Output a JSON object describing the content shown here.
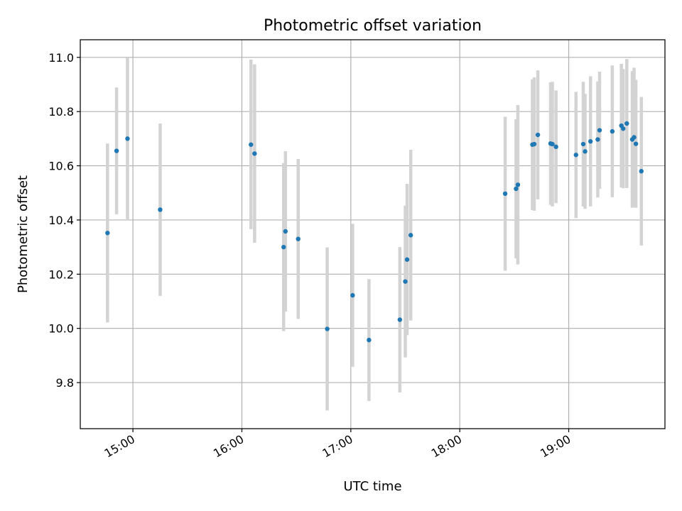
{
  "chart_data": {
    "type": "scatter",
    "title": "Photometric offset variation",
    "xlabel": "UTC time",
    "ylabel": "Photometric offset",
    "xlim": [
      "14:31",
      "19:53"
    ],
    "ylim": [
      9.63,
      11.065
    ],
    "x_ticks": [
      "15:00",
      "16:00",
      "17:00",
      "18:00",
      "19:00"
    ],
    "y_ticks": [
      "9.8",
      "10.0",
      "10.2",
      "10.4",
      "10.6",
      "10.8",
      "11.0"
    ],
    "grid": true,
    "colors": {
      "point": "#1f77b4",
      "errorbar": "#d3d3d3",
      "grid": "#b0b0b0"
    },
    "points": [
      {
        "t": "14:46",
        "y": 10.352,
        "lo": 10.022,
        "hi": 10.682
      },
      {
        "t": "14:51",
        "y": 10.655,
        "lo": 10.421,
        "hi": 10.889
      },
      {
        "t": "14:57",
        "y": 10.7,
        "lo": 10.4,
        "hi": 11.0
      },
      {
        "t": "15:15",
        "y": 10.438,
        "lo": 10.12,
        "hi": 10.756
      },
      {
        "t": "16:05",
        "y": 10.678,
        "lo": 10.366,
        "hi": 10.992
      },
      {
        "t": "16:07",
        "y": 10.645,
        "lo": 10.316,
        "hi": 10.974
      },
      {
        "t": "16:23",
        "y": 10.3,
        "lo": 9.99,
        "hi": 10.61
      },
      {
        "t": "16:24",
        "y": 10.358,
        "lo": 10.062,
        "hi": 10.654
      },
      {
        "t": "16:31",
        "y": 10.33,
        "lo": 10.035,
        "hi": 10.625
      },
      {
        "t": "16:47",
        "y": 9.998,
        "lo": 9.697,
        "hi": 10.299
      },
      {
        "t": "17:01",
        "y": 10.122,
        "lo": 9.858,
        "hi": 10.386
      },
      {
        "t": "17:10",
        "y": 9.957,
        "lo": 9.732,
        "hi": 10.182
      },
      {
        "t": "17:27",
        "y": 10.032,
        "lo": 9.764,
        "hi": 10.3
      },
      {
        "t": "17:30",
        "y": 10.173,
        "lo": 9.893,
        "hi": 10.453
      },
      {
        "t": "17:31",
        "y": 10.254,
        "lo": 9.975,
        "hi": 10.533
      },
      {
        "t": "17:33",
        "y": 10.344,
        "lo": 10.029,
        "hi": 10.659
      },
      {
        "t": "18:25",
        "y": 10.497,
        "lo": 10.213,
        "hi": 10.781
      },
      {
        "t": "18:31",
        "y": 10.515,
        "lo": 10.258,
        "hi": 10.772
      },
      {
        "t": "18:32",
        "y": 10.53,
        "lo": 10.236,
        "hi": 10.824
      },
      {
        "t": "18:40",
        "y": 10.678,
        "lo": 10.437,
        "hi": 10.919
      },
      {
        "t": "18:41",
        "y": 10.68,
        "lo": 10.434,
        "hi": 10.926
      },
      {
        "t": "18:43",
        "y": 10.714,
        "lo": 10.476,
        "hi": 10.952
      },
      {
        "t": "18:50",
        "y": 10.682,
        "lo": 10.456,
        "hi": 10.908
      },
      {
        "t": "18:51",
        "y": 10.68,
        "lo": 10.45,
        "hi": 10.91
      },
      {
        "t": "18:53",
        "y": 10.67,
        "lo": 10.462,
        "hi": 10.878
      },
      {
        "t": "19:04",
        "y": 10.64,
        "lo": 10.407,
        "hi": 10.873
      },
      {
        "t": "19:08",
        "y": 10.68,
        "lo": 10.45,
        "hi": 10.91
      },
      {
        "t": "19:09",
        "y": 10.653,
        "lo": 10.441,
        "hi": 10.865
      },
      {
        "t": "19:12",
        "y": 10.69,
        "lo": 10.45,
        "hi": 10.93
      },
      {
        "t": "19:16",
        "y": 10.697,
        "lo": 10.483,
        "hi": 10.911
      },
      {
        "t": "19:17",
        "y": 10.731,
        "lo": 10.515,
        "hi": 10.947
      },
      {
        "t": "19:24",
        "y": 10.727,
        "lo": 10.484,
        "hi": 10.97
      },
      {
        "t": "19:29",
        "y": 10.748,
        "lo": 10.52,
        "hi": 10.976
      },
      {
        "t": "19:30",
        "y": 10.737,
        "lo": 10.517,
        "hi": 10.957
      },
      {
        "t": "19:32",
        "y": 10.756,
        "lo": 10.518,
        "hi": 10.994
      },
      {
        "t": "19:35",
        "y": 10.697,
        "lo": 10.445,
        "hi": 10.949
      },
      {
        "t": "19:36",
        "y": 10.705,
        "lo": 10.448,
        "hi": 10.962
      },
      {
        "t": "19:37",
        "y": 10.681,
        "lo": 10.445,
        "hi": 10.917
      },
      {
        "t": "19:40",
        "y": 10.58,
        "lo": 10.306,
        "hi": 10.854
      }
    ]
  }
}
